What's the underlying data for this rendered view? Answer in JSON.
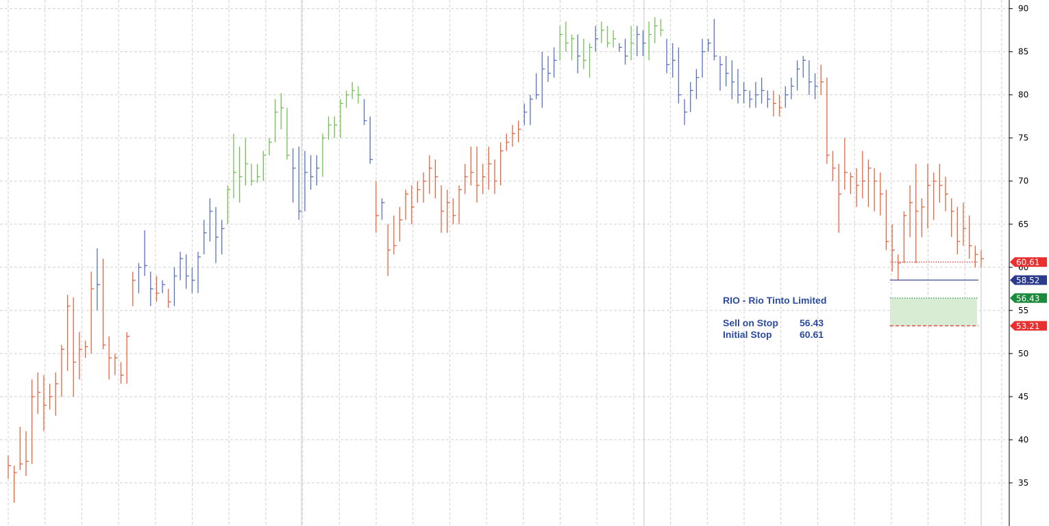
{
  "chart_data": {
    "type": "ohlc",
    "title": "",
    "xlabel": "",
    "ylabel": "",
    "ylim": [
      30,
      91
    ],
    "yticks": [
      35,
      40,
      45,
      50,
      55,
      60,
      65,
      70,
      75,
      80,
      85,
      90
    ],
    "grid": true,
    "y_axis_side": "right",
    "colors": {
      "bear": "#e8623c",
      "neutral": "#5470c0",
      "bull": "#70c050"
    },
    "bars": [
      {
        "high": 38.2,
        "low": 35.5,
        "close": 37.0,
        "trend": "bear"
      },
      {
        "high": 37.0,
        "low": 32.7,
        "close": 36.2,
        "trend": "bear"
      },
      {
        "high": 41.5,
        "low": 36.5,
        "close": 37.2,
        "trend": "bear"
      },
      {
        "high": 41.0,
        "low": 35.8,
        "close": 37.5,
        "trend": "bear"
      },
      {
        "high": 47.0,
        "low": 37.2,
        "close": 45.0,
        "trend": "bear"
      },
      {
        "high": 47.8,
        "low": 43.0,
        "close": 45.5,
        "trend": "bear"
      },
      {
        "high": 47.5,
        "low": 41.0,
        "close": 44.0,
        "trend": "bear"
      },
      {
        "high": 46.5,
        "low": 43.5,
        "close": 45.0,
        "trend": "bear"
      },
      {
        "high": 47.8,
        "low": 42.8,
        "close": 46.5,
        "trend": "bear"
      },
      {
        "high": 51.0,
        "low": 45.0,
        "close": 50.5,
        "trend": "bear"
      },
      {
        "high": 56.8,
        "low": 48.0,
        "close": 55.5,
        "trend": "bear"
      },
      {
        "high": 56.5,
        "low": 45.0,
        "close": 49.0,
        "trend": "bear"
      },
      {
        "high": 52.5,
        "low": 47.0,
        "close": 50.5,
        "trend": "bear"
      },
      {
        "high": 51.5,
        "low": 49.5,
        "close": 50.8,
        "trend": "bear"
      },
      {
        "high": 59.5,
        "low": 50.0,
        "close": 57.5,
        "trend": "bear"
      },
      {
        "high": 62.2,
        "low": 55.0,
        "close": 58.0,
        "trend": "neutral"
      },
      {
        "high": 61.0,
        "low": 50.5,
        "close": 51.0,
        "trend": "bear"
      },
      {
        "high": 52.0,
        "low": 47.0,
        "close": 49.5,
        "trend": "bear"
      },
      {
        "high": 50.0,
        "low": 47.5,
        "close": 49.5,
        "trend": "bear"
      },
      {
        "high": 49.0,
        "low": 46.5,
        "close": 47.5,
        "trend": "bear"
      },
      {
        "high": 52.5,
        "low": 46.5,
        "close": 52.0,
        "trend": "bear"
      },
      {
        "high": 59.5,
        "low": 55.5,
        "close": 58.5,
        "trend": "bear"
      },
      {
        "high": 60.5,
        "low": 57.0,
        "close": 60.0,
        "trend": "neutral"
      },
      {
        "high": 64.3,
        "low": 59.0,
        "close": 60.2,
        "trend": "neutral"
      },
      {
        "high": 59.5,
        "low": 55.5,
        "close": 57.5,
        "trend": "neutral"
      },
      {
        "high": 59.0,
        "low": 56.0,
        "close": 57.0,
        "trend": "bear"
      },
      {
        "high": 58.5,
        "low": 57.0,
        "close": 58.0,
        "trend": "neutral"
      },
      {
        "high": 57.5,
        "low": 55.3,
        "close": 56.0,
        "trend": "bear"
      },
      {
        "high": 60.0,
        "low": 55.5,
        "close": 59.0,
        "trend": "neutral"
      },
      {
        "high": 61.8,
        "low": 58.5,
        "close": 61.0,
        "trend": "neutral"
      },
      {
        "high": 61.5,
        "low": 57.5,
        "close": 59.0,
        "trend": "neutral"
      },
      {
        "high": 60.0,
        "low": 57.0,
        "close": 58.5,
        "trend": "neutral"
      },
      {
        "high": 61.8,
        "low": 57.0,
        "close": 61.2,
        "trend": "neutral"
      },
      {
        "high": 65.5,
        "low": 61.5,
        "close": 64.0,
        "trend": "neutral"
      },
      {
        "high": 68.0,
        "low": 63.0,
        "close": 66.5,
        "trend": "neutral"
      },
      {
        "high": 67.0,
        "low": 60.5,
        "close": 63.5,
        "trend": "neutral"
      },
      {
        "high": 65.5,
        "low": 61.5,
        "close": 64.5,
        "trend": "neutral"
      },
      {
        "high": 69.5,
        "low": 65.0,
        "close": 69.0,
        "trend": "bull"
      },
      {
        "high": 75.5,
        "low": 68.0,
        "close": 71.0,
        "trend": "bull"
      },
      {
        "high": 74.0,
        "low": 67.5,
        "close": 70.5,
        "trend": "bull"
      },
      {
        "high": 75.0,
        "low": 69.5,
        "close": 72.0,
        "trend": "bull"
      },
      {
        "high": 72.0,
        "low": 69.5,
        "close": 70.0,
        "trend": "bull"
      },
      {
        "high": 72.0,
        "low": 69.8,
        "close": 70.5,
        "trend": "bull"
      },
      {
        "high": 73.5,
        "low": 70.0,
        "close": 73.0,
        "trend": "bull"
      },
      {
        "high": 75.0,
        "low": 73.0,
        "close": 74.5,
        "trend": "bull"
      },
      {
        "high": 79.5,
        "low": 74.5,
        "close": 78.0,
        "trend": "bull"
      },
      {
        "high": 80.2,
        "low": 76.0,
        "close": 78.5,
        "trend": "bull"
      },
      {
        "high": 78.5,
        "low": 72.5,
        "close": 73.0,
        "trend": "bull"
      },
      {
        "high": 73.8,
        "low": 67.5,
        "close": 71.5,
        "trend": "neutral"
      },
      {
        "high": 74.0,
        "low": 65.5,
        "close": 66.5,
        "trend": "neutral"
      },
      {
        "high": 73.5,
        "low": 66.5,
        "close": 71.0,
        "trend": "neutral"
      },
      {
        "high": 73.0,
        "low": 69.0,
        "close": 70.5,
        "trend": "neutral"
      },
      {
        "high": 73.0,
        "low": 69.5,
        "close": 71.5,
        "trend": "neutral"
      },
      {
        "high": 75.5,
        "low": 70.5,
        "close": 75.0,
        "trend": "bull"
      },
      {
        "high": 77.5,
        "low": 74.8,
        "close": 76.5,
        "trend": "bull"
      },
      {
        "high": 77.5,
        "low": 75.0,
        "close": 76.5,
        "trend": "bull"
      },
      {
        "high": 79.5,
        "low": 75.0,
        "close": 79.0,
        "trend": "bull"
      },
      {
        "high": 80.5,
        "low": 78.5,
        "close": 80.0,
        "trend": "bull"
      },
      {
        "high": 81.5,
        "low": 79.5,
        "close": 80.5,
        "trend": "bull"
      },
      {
        "high": 81.0,
        "low": 79.0,
        "close": 80.0,
        "trend": "bull"
      },
      {
        "high": 79.5,
        "low": 76.5,
        "close": 77.0,
        "trend": "neutral"
      },
      {
        "high": 77.5,
        "low": 72.0,
        "close": 72.5,
        "trend": "neutral"
      },
      {
        "high": 70.0,
        "low": 64.0,
        "close": 66.0,
        "trend": "bear"
      },
      {
        "high": 68.0,
        "low": 65.5,
        "close": 67.5,
        "trend": "neutral"
      },
      {
        "high": 65.0,
        "low": 59.0,
        "close": 62.0,
        "trend": "bear"
      },
      {
        "high": 66.0,
        "low": 61.5,
        "close": 62.5,
        "trend": "bear"
      },
      {
        "high": 67.0,
        "low": 63.0,
        "close": 65.5,
        "trend": "bear"
      },
      {
        "high": 69.0,
        "low": 65.5,
        "close": 68.5,
        "trend": "bear"
      },
      {
        "high": 69.5,
        "low": 65.0,
        "close": 67.0,
        "trend": "bear"
      },
      {
        "high": 70.0,
        "low": 67.5,
        "close": 69.0,
        "trend": "bear"
      },
      {
        "high": 71.0,
        "low": 67.5,
        "close": 70.0,
        "trend": "bear"
      },
      {
        "high": 73.0,
        "low": 68.5,
        "close": 71.5,
        "trend": "bear"
      },
      {
        "high": 72.5,
        "low": 68.0,
        "close": 70.5,
        "trend": "bear"
      },
      {
        "high": 69.5,
        "low": 64.0,
        "close": 66.5,
        "trend": "bear"
      },
      {
        "high": 69.0,
        "low": 64.0,
        "close": 67.5,
        "trend": "bear"
      },
      {
        "high": 68.0,
        "low": 65.0,
        "close": 66.0,
        "trend": "bear"
      },
      {
        "high": 69.5,
        "low": 65.0,
        "close": 69.0,
        "trend": "bear"
      },
      {
        "high": 72.0,
        "low": 68.5,
        "close": 70.5,
        "trend": "bear"
      },
      {
        "high": 74.0,
        "low": 69.5,
        "close": 71.0,
        "trend": "bear"
      },
      {
        "high": 74.0,
        "low": 67.5,
        "close": 69.5,
        "trend": "bear"
      },
      {
        "high": 72.0,
        "low": 68.5,
        "close": 70.5,
        "trend": "bear"
      },
      {
        "high": 74.0,
        "low": 69.0,
        "close": 72.0,
        "trend": "bear"
      },
      {
        "high": 72.5,
        "low": 68.5,
        "close": 70.0,
        "trend": "bear"
      },
      {
        "high": 74.5,
        "low": 69.5,
        "close": 73.5,
        "trend": "bear"
      },
      {
        "high": 75.5,
        "low": 73.5,
        "close": 74.5,
        "trend": "bear"
      },
      {
        "high": 76.5,
        "low": 74.0,
        "close": 75.5,
        "trend": "bear"
      },
      {
        "high": 77.0,
        "low": 74.5,
        "close": 76.0,
        "trend": "bear"
      },
      {
        "high": 79.0,
        "low": 76.5,
        "close": 78.0,
        "trend": "neutral"
      },
      {
        "high": 80.0,
        "low": 76.5,
        "close": 79.5,
        "trend": "neutral"
      },
      {
        "high": 82.5,
        "low": 79.5,
        "close": 80.0,
        "trend": "neutral"
      },
      {
        "high": 85.0,
        "low": 78.5,
        "close": 83.0,
        "trend": "neutral"
      },
      {
        "high": 84.5,
        "low": 81.5,
        "close": 82.5,
        "trend": "neutral"
      },
      {
        "high": 85.5,
        "low": 82.0,
        "close": 84.0,
        "trend": "neutral"
      },
      {
        "high": 88.0,
        "low": 84.0,
        "close": 87.0,
        "trend": "bull"
      },
      {
        "high": 88.5,
        "low": 85.0,
        "close": 86.0,
        "trend": "bull"
      },
      {
        "high": 87.0,
        "low": 84.0,
        "close": 86.5,
        "trend": "bull"
      },
      {
        "high": 87.0,
        "low": 82.5,
        "close": 84.5,
        "trend": "neutral"
      },
      {
        "high": 86.5,
        "low": 83.0,
        "close": 84.0,
        "trend": "bull"
      },
      {
        "high": 86.0,
        "low": 82.0,
        "close": 85.5,
        "trend": "bull"
      },
      {
        "high": 88.0,
        "low": 85.0,
        "close": 86.5,
        "trend": "neutral"
      },
      {
        "high": 88.5,
        "low": 86.0,
        "close": 87.5,
        "trend": "bull"
      },
      {
        "high": 88.0,
        "low": 85.5,
        "close": 86.0,
        "trend": "bull"
      },
      {
        "high": 87.5,
        "low": 85.5,
        "close": 86.5,
        "trend": "bull"
      },
      {
        "high": 86.0,
        "low": 85.0,
        "close": 85.5,
        "trend": "neutral"
      },
      {
        "high": 86.5,
        "low": 83.5,
        "close": 84.5,
        "trend": "neutral"
      },
      {
        "high": 88.0,
        "low": 84.0,
        "close": 86.0,
        "trend": "bull"
      },
      {
        "high": 88.0,
        "low": 84.5,
        "close": 87.0,
        "trend": "neutral"
      },
      {
        "high": 87.5,
        "low": 84.5,
        "close": 86.0,
        "trend": "neutral"
      },
      {
        "high": 88.5,
        "low": 84.0,
        "close": 87.0,
        "trend": "bull"
      },
      {
        "high": 89.0,
        "low": 86.0,
        "close": 88.0,
        "trend": "bull"
      },
      {
        "high": 88.8,
        "low": 86.8,
        "close": 87.5,
        "trend": "bull"
      },
      {
        "high": 86.5,
        "low": 82.5,
        "close": 83.5,
        "trend": "neutral"
      },
      {
        "high": 86.0,
        "low": 82.0,
        "close": 84.0,
        "trend": "neutral"
      },
      {
        "high": 85.5,
        "low": 79.0,
        "close": 80.0,
        "trend": "neutral"
      },
      {
        "high": 79.5,
        "low": 76.5,
        "close": 78.0,
        "trend": "neutral"
      },
      {
        "high": 81.5,
        "low": 78.0,
        "close": 80.5,
        "trend": "neutral"
      },
      {
        "high": 83.0,
        "low": 79.5,
        "close": 82.0,
        "trend": "neutral"
      },
      {
        "high": 86.5,
        "low": 82.0,
        "close": 85.0,
        "trend": "neutral"
      },
      {
        "high": 86.5,
        "low": 85.0,
        "close": 86.0,
        "trend": "neutral"
      },
      {
        "high": 88.8,
        "low": 84.0,
        "close": 84.5,
        "trend": "neutral"
      },
      {
        "high": 84.5,
        "low": 80.5,
        "close": 83.5,
        "trend": "neutral"
      },
      {
        "high": 84.5,
        "low": 81.0,
        "close": 82.5,
        "trend": "neutral"
      },
      {
        "high": 84.0,
        "low": 79.5,
        "close": 81.5,
        "trend": "neutral"
      },
      {
        "high": 83.0,
        "low": 79.0,
        "close": 80.0,
        "trend": "neutral"
      },
      {
        "high": 81.5,
        "low": 79.0,
        "close": 80.5,
        "trend": "neutral"
      },
      {
        "high": 80.5,
        "low": 78.5,
        "close": 79.5,
        "trend": "neutral"
      },
      {
        "high": 81.5,
        "low": 78.5,
        "close": 80.0,
        "trend": "neutral"
      },
      {
        "high": 82.0,
        "low": 79.0,
        "close": 80.5,
        "trend": "neutral"
      },
      {
        "high": 80.5,
        "low": 78.5,
        "close": 79.5,
        "trend": "neutral"
      },
      {
        "high": 80.5,
        "low": 77.5,
        "close": 79.0,
        "trend": "bear"
      },
      {
        "high": 80.0,
        "low": 77.5,
        "close": 78.5,
        "trend": "bear"
      },
      {
        "high": 81.0,
        "low": 78.5,
        "close": 80.0,
        "trend": "neutral"
      },
      {
        "high": 82.0,
        "low": 79.5,
        "close": 81.0,
        "trend": "neutral"
      },
      {
        "high": 84.0,
        "low": 80.5,
        "close": 83.0,
        "trend": "neutral"
      },
      {
        "high": 84.5,
        "low": 82.0,
        "close": 84.0,
        "trend": "neutral"
      },
      {
        "high": 84.0,
        "low": 80.0,
        "close": 81.5,
        "trend": "neutral"
      },
      {
        "high": 82.5,
        "low": 79.5,
        "close": 81.0,
        "trend": "neutral"
      },
      {
        "high": 83.5,
        "low": 80.0,
        "close": 81.5,
        "trend": "bear"
      },
      {
        "high": 82.0,
        "low": 72.0,
        "close": 73.0,
        "trend": "bear"
      },
      {
        "high": 73.5,
        "low": 70.0,
        "close": 71.5,
        "trend": "bear"
      },
      {
        "high": 72.0,
        "low": 64.0,
        "close": 68.5,
        "trend": "bear"
      },
      {
        "high": 75.0,
        "low": 69.0,
        "close": 71.0,
        "trend": "bear"
      },
      {
        "high": 71.0,
        "low": 68.5,
        "close": 70.5,
        "trend": "bear"
      },
      {
        "high": 71.5,
        "low": 67.0,
        "close": 69.5,
        "trend": "bear"
      },
      {
        "high": 73.5,
        "low": 68.0,
        "close": 70.0,
        "trend": "bear"
      },
      {
        "high": 72.5,
        "low": 67.0,
        "close": 71.5,
        "trend": "bear"
      },
      {
        "high": 71.5,
        "low": 66.5,
        "close": 70.0,
        "trend": "bear"
      },
      {
        "high": 71.0,
        "low": 66.0,
        "close": 68.5,
        "trend": "bear"
      },
      {
        "high": 69.0,
        "low": 62.0,
        "close": 63.0,
        "trend": "bear"
      },
      {
        "high": 65.0,
        "low": 59.5,
        "close": 62.0,
        "trend": "bear"
      },
      {
        "high": 61.5,
        "low": 58.5,
        "close": 60.5,
        "trend": "bear"
      },
      {
        "high": 66.5,
        "low": 60.5,
        "close": 66.0,
        "trend": "bear"
      },
      {
        "high": 69.5,
        "low": 63.5,
        "close": 67.5,
        "trend": "bear"
      },
      {
        "high": 72.0,
        "low": 60.5,
        "close": 66.5,
        "trend": "bear"
      },
      {
        "high": 68.0,
        "low": 63.5,
        "close": 67.0,
        "trend": "bear"
      },
      {
        "high": 72.0,
        "low": 64.5,
        "close": 69.5,
        "trend": "bear"
      },
      {
        "high": 71.0,
        "low": 65.5,
        "close": 70.0,
        "trend": "bear"
      },
      {
        "high": 72.0,
        "low": 67.5,
        "close": 69.5,
        "trend": "bear"
      },
      {
        "high": 70.5,
        "low": 66.5,
        "close": 68.5,
        "trend": "bear"
      },
      {
        "high": 68.0,
        "low": 63.5,
        "close": 66.5,
        "trend": "bear"
      },
      {
        "high": 67.0,
        "low": 61.5,
        "close": 63.0,
        "trend": "bear"
      },
      {
        "high": 67.5,
        "low": 62.5,
        "close": 64.5,
        "trend": "bear"
      },
      {
        "high": 66.0,
        "low": 61.0,
        "close": 62.5,
        "trend": "bear"
      },
      {
        "high": 62.5,
        "low": 60.0,
        "close": 61.5,
        "trend": "bear"
      },
      {
        "high": 62.0,
        "low": 60.0,
        "close": 61.0,
        "trend": "bear"
      }
    ],
    "levels": [
      {
        "label": "60.61",
        "value": 60.61,
        "color": "#e83030",
        "style": "dotted"
      },
      {
        "label": "58.52",
        "value": 58.52,
        "color": "#2a3a8c",
        "style": "solid"
      },
      {
        "label": "56.43",
        "value": 56.43,
        "color": "#1c8a3c",
        "style": "dotted"
      },
      {
        "label": "53.21",
        "value": 53.21,
        "color": "#e83030",
        "style": "dashed"
      }
    ],
    "shaded_zone": {
      "from": 53.21,
      "to": 56.43,
      "color": "#d8ecd4"
    },
    "annotation": {
      "title": "RIO - Rio Tinto Limited",
      "rows": [
        {
          "label": "Sell on Stop",
          "value": "56.43"
        },
        {
          "label": "Initial Stop",
          "value": "60.61"
        }
      ]
    }
  }
}
